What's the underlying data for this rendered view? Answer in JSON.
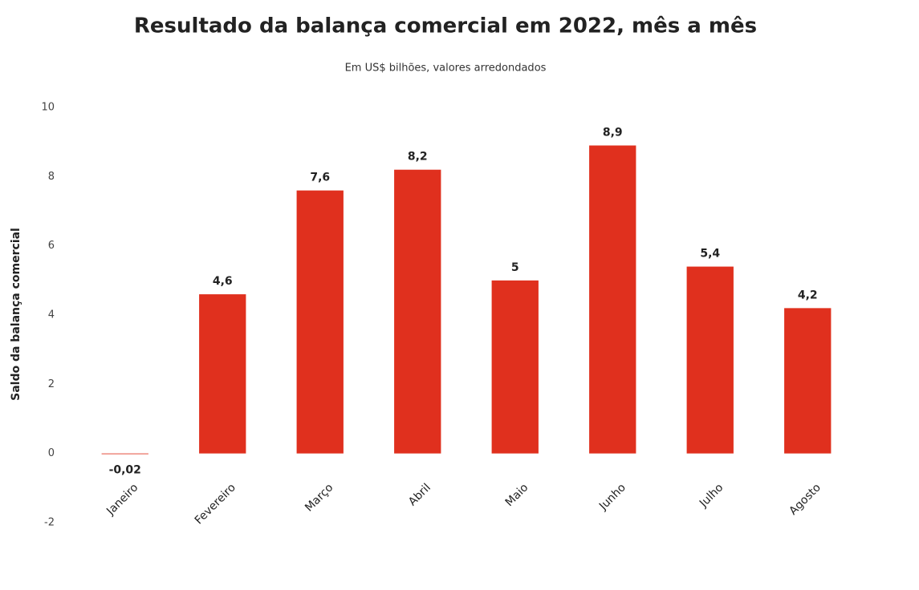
{
  "chart_data": {
    "type": "bar",
    "title": "Resultado da balança comercial em 2022, mês a mês",
    "subtitle": "Em US$ bilhões, valores arredondados",
    "y_label": "Saldo da balança comercial",
    "categories": [
      "Janeiro",
      "Fevereiro",
      "Março",
      "Abril",
      "Maio",
      "Junho",
      "Julho",
      "Agosto"
    ],
    "values": [
      -0.02,
      4.6,
      7.6,
      8.2,
      5,
      8.9,
      5.4,
      4.2
    ],
    "value_labels": [
      "-0,02",
      "4,6",
      "7,6",
      "8,2",
      "5",
      "8,9",
      "5,4",
      "4,2"
    ],
    "color": "#e0301e",
    "ylim": [
      -2,
      10
    ],
    "yticks": [
      -2,
      0,
      2,
      4,
      6,
      8,
      10
    ],
    "grid": false
  }
}
